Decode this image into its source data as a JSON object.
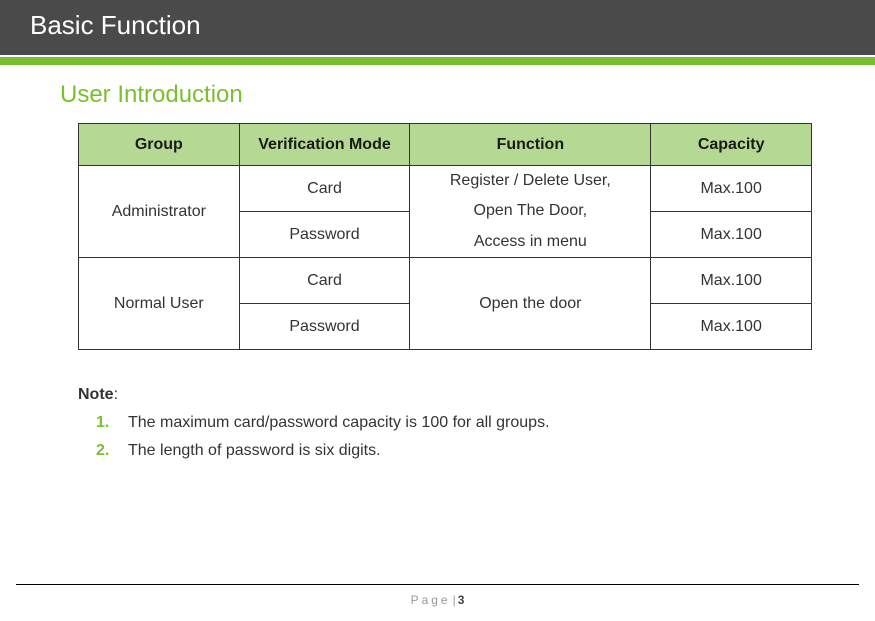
{
  "header": {
    "title": "Basic Function"
  },
  "section": {
    "title": "User Introduction"
  },
  "table": {
    "columns": [
      "Group",
      "Verification Mode",
      "Function",
      "Capacity"
    ],
    "rows": {
      "admin": {
        "group": "Administrator",
        "mode_card": "Card",
        "mode_password": "Password",
        "function_line1": "Register / Delete User,",
        "function_line2": "Open The Door,",
        "function_line3": "Access in menu",
        "capacity_card": "Max.100",
        "capacity_password": "Max.100"
      },
      "user": {
        "group": "Normal User",
        "mode_card": "Card",
        "mode_password": "Password",
        "function": "Open the door",
        "capacity_card": "Max.100",
        "capacity_password": "Max.100"
      }
    },
    "header_bg_color": "#b5d993",
    "border_color": "#333333",
    "font_size": 16
  },
  "notes": {
    "label": "Note",
    "colon": ":",
    "items": [
      "The maximum card/password capacity is 100 for all groups.",
      "The length of password is six digits."
    ],
    "number_color": "#7bbf2e"
  },
  "footer": {
    "page_label": "Page",
    "page_number": "3"
  },
  "colors": {
    "accent": "#7bbf2e",
    "header_bg": "#4a4a4a",
    "header_text": "#ffffff",
    "table_header_bg": "#b5d993",
    "text": "#333333",
    "footer_text": "#999999"
  }
}
